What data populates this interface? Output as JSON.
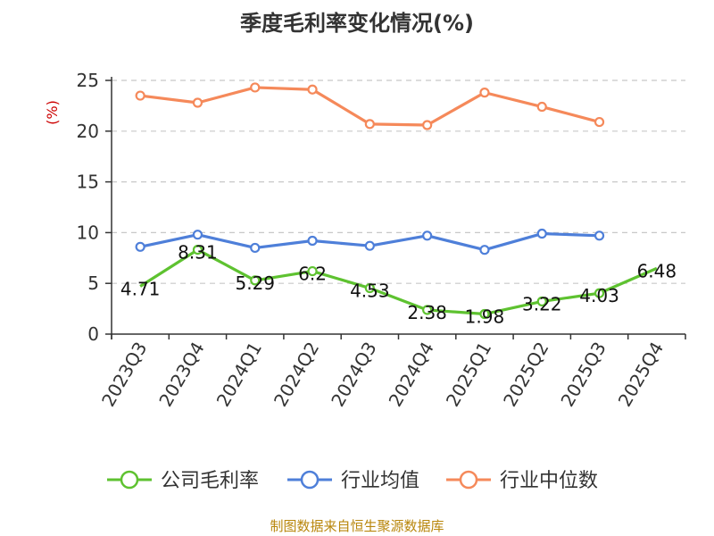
{
  "chart_data": {
    "type": "line",
    "title": "季度毛利率变化情况(%)",
    "ylabel": "(%)",
    "ylim": [
      0,
      25
    ],
    "yticks": [
      0,
      5,
      10,
      15,
      20,
      25
    ],
    "grid": true,
    "legend_position": "bottom",
    "categories": [
      "2023Q3",
      "2023Q4",
      "2024Q1",
      "2024Q2",
      "2024Q3",
      "2024Q4",
      "2025Q1",
      "2025Q2",
      "2025Q3",
      "2025Q4"
    ],
    "series": [
      {
        "name": "公司毛利率",
        "color": "#5ec230",
        "values": [
          4.71,
          8.31,
          5.29,
          6.2,
          4.53,
          2.38,
          1.98,
          3.22,
          4.03,
          6.48
        ],
        "labels": [
          "4.71",
          "8.31",
          "5.29",
          "6.2",
          "4.53",
          "2.38",
          "1.98",
          "3.22",
          "4.03",
          "6.48"
        ]
      },
      {
        "name": "行业均值",
        "color": "#4e7fd9",
        "values": [
          8.6,
          9.8,
          8.5,
          9.2,
          8.7,
          9.7,
          8.3,
          9.9,
          9.7,
          null
        ]
      },
      {
        "name": "行业中位数",
        "color": "#f5895a",
        "values": [
          23.5,
          22.8,
          24.3,
          24.1,
          20.7,
          20.6,
          23.8,
          22.4,
          20.9,
          null
        ]
      }
    ],
    "source": "制图数据来自恒生聚源数据库",
    "ylabel_color": "#cc0000",
    "source_color": "#b8860b"
  }
}
